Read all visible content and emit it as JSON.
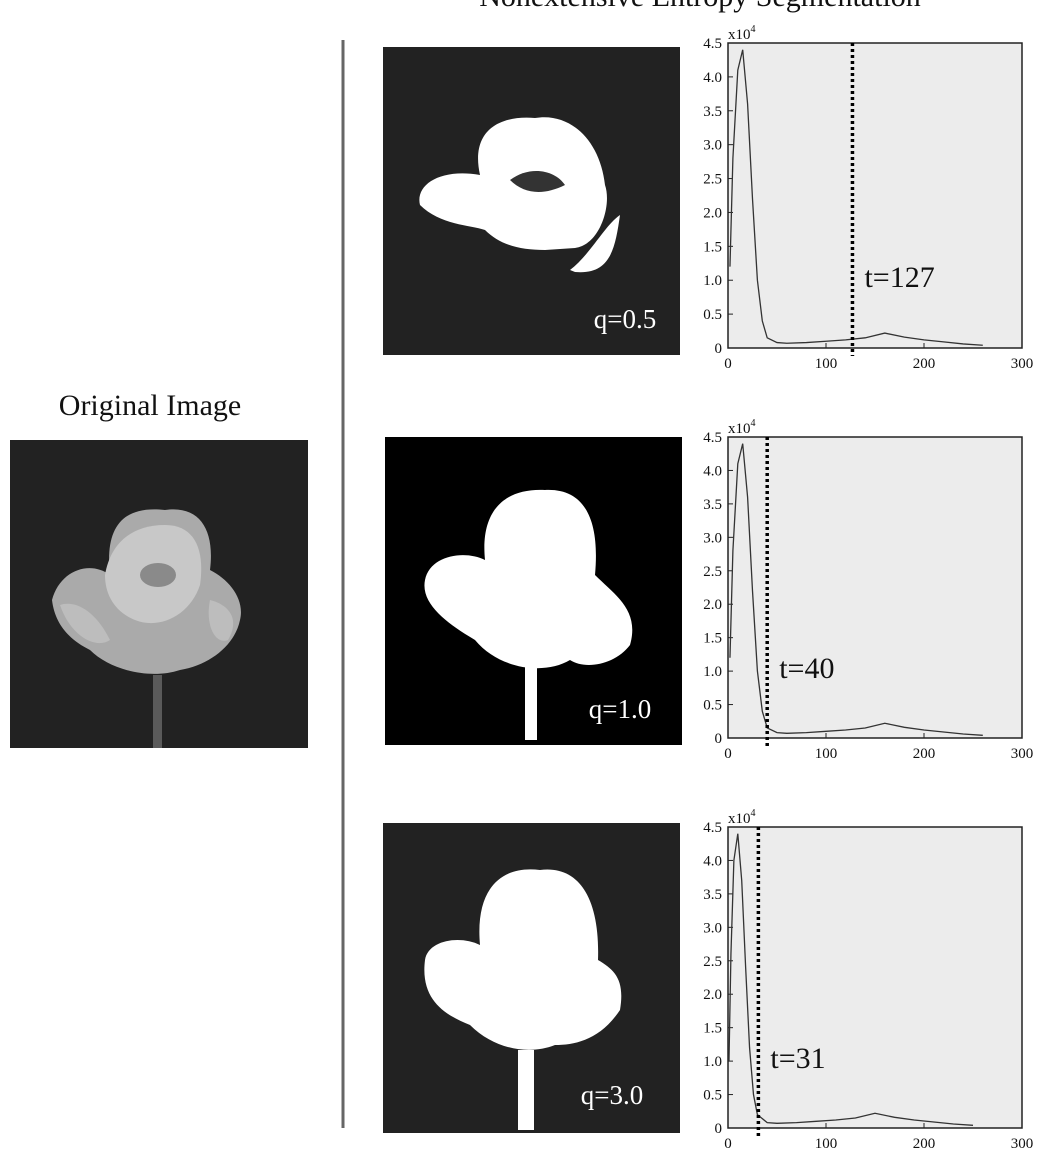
{
  "title": "Nonextensive Entropy Segmentation",
  "original_label": "Original Image",
  "chart_data": [
    {
      "type": "line",
      "image_label": "q=0.5",
      "threshold": 127,
      "threshold_label": "t=127",
      "y_scale_label": {
        "base": "x10",
        "exponent": "4"
      },
      "x": [
        2,
        5,
        10,
        15,
        20,
        25,
        30,
        35,
        40,
        50,
        60,
        80,
        100,
        120,
        140,
        160,
        180,
        200,
        220,
        240,
        260
      ],
      "series": [
        {
          "color": "#333333",
          "values": [
            1.2,
            2.8,
            4.1,
            4.4,
            3.6,
            2.2,
            1.0,
            0.4,
            0.15,
            0.08,
            0.07,
            0.08,
            0.1,
            0.12,
            0.15,
            0.22,
            0.16,
            0.12,
            0.09,
            0.06,
            0.04
          ]
        }
      ],
      "xlim": [
        0,
        300
      ],
      "ylim": [
        0,
        4.5
      ],
      "xticks": [
        0,
        100,
        200,
        300
      ],
      "yticks": [
        0,
        0.5,
        {
          "value": 1,
          "label": "1.0"
        },
        1.5,
        {
          "value": 2,
          "label": "2.0"
        },
        2.5,
        {
          "value": 3,
          "label": "3.0"
        },
        3.5,
        {
          "value": 4,
          "label": "4.0"
        },
        4.5
      ]
    },
    {
      "type": "line",
      "image_label": "q=1.0",
      "threshold": 40,
      "threshold_label": "t=40",
      "y_scale_label": {
        "base": "x10",
        "exponent": "4"
      },
      "x": [
        2,
        5,
        10,
        15,
        20,
        25,
        30,
        35,
        40,
        50,
        60,
        80,
        100,
        120,
        140,
        160,
        180,
        200,
        220,
        240,
        260
      ],
      "series": [
        {
          "color": "#333333",
          "values": [
            1.2,
            2.8,
            4.1,
            4.4,
            3.6,
            2.2,
            1.0,
            0.4,
            0.15,
            0.08,
            0.07,
            0.08,
            0.1,
            0.12,
            0.15,
            0.22,
            0.16,
            0.12,
            0.09,
            0.06,
            0.04
          ]
        }
      ],
      "xlim": [
        0,
        300
      ],
      "ylim": [
        0,
        4.5
      ],
      "xticks": [
        0,
        100,
        200,
        300
      ],
      "yticks": [
        0,
        0.5,
        {
          "value": 1,
          "label": "1.0"
        },
        1.5,
        {
          "value": 2,
          "label": "2.0"
        },
        2.5,
        {
          "value": 3,
          "label": "3.0"
        },
        3.5,
        {
          "value": 4,
          "label": "4.0"
        },
        4.5
      ]
    },
    {
      "type": "line",
      "image_label": "q=3.0",
      "threshold": 31,
      "threshold_label": "t=31",
      "y_scale_label": {
        "base": "x10",
        "exponent": "4"
      },
      "x": [
        1,
        3,
        6,
        10,
        14,
        18,
        22,
        26,
        30,
        40,
        50,
        70,
        90,
        110,
        130,
        150,
        170,
        190,
        210,
        230,
        250
      ],
      "series": [
        {
          "color": "#333333",
          "values": [
            1.0,
            2.6,
            4.0,
            4.4,
            3.7,
            2.4,
            1.2,
            0.5,
            0.2,
            0.08,
            0.07,
            0.08,
            0.1,
            0.12,
            0.15,
            0.22,
            0.16,
            0.12,
            0.09,
            0.06,
            0.04
          ]
        }
      ],
      "xlim": [
        0,
        300
      ],
      "ylim": [
        0,
        4.5
      ],
      "xticks": [
        0,
        100,
        200,
        300
      ],
      "yticks": [
        0,
        0.5,
        {
          "value": 1,
          "label": "1.0"
        },
        1.5,
        {
          "value": 2,
          "label": "2.0"
        },
        2.5,
        {
          "value": 3,
          "label": "3.0"
        },
        3.5,
        {
          "value": 4,
          "label": "4.0"
        },
        4.5
      ]
    }
  ]
}
